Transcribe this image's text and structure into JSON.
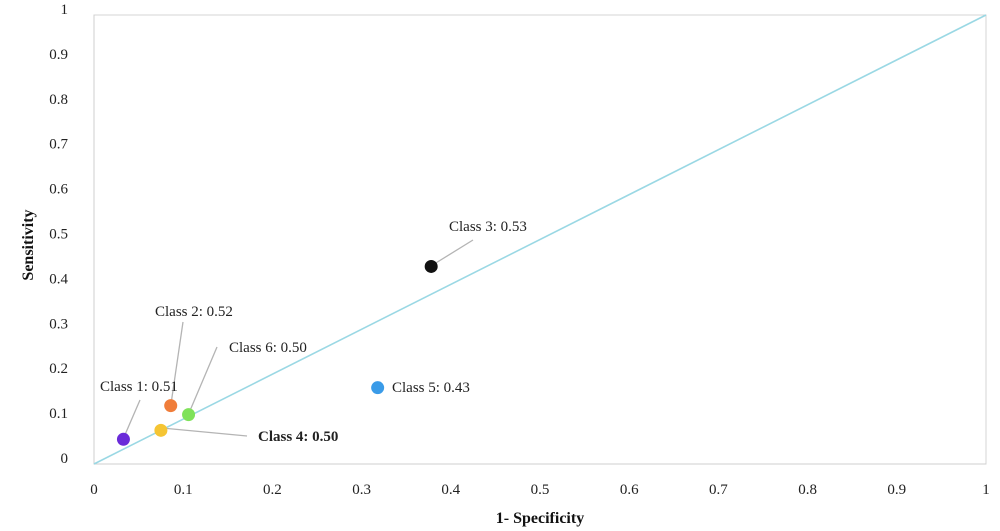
{
  "chart_data": {
    "type": "scatter",
    "xlabel": "1- Specificity",
    "ylabel": "Sensitivity",
    "xlim": [
      0,
      1
    ],
    "ylim": [
      0,
      1
    ],
    "x_ticks": [
      "0",
      "0.1",
      "0.2",
      "0.3",
      "0.4",
      "0.5",
      "0.6",
      "0.7",
      "0.8",
      "0.9",
      "1"
    ],
    "y_ticks": [
      "0",
      "0.1",
      "0.2",
      "0.3",
      "0.4",
      "0.5",
      "0.6",
      "0.7",
      "0.8",
      "0.9",
      "1"
    ],
    "grid": false,
    "reference_line": {
      "from": [
        0,
        0
      ],
      "to": [
        1,
        1
      ],
      "color": "#9ad8e4"
    },
    "points": [
      {
        "label": "Class 1: 0.51",
        "x": 0.033,
        "y": 0.055,
        "color": "#6a2bd9"
      },
      {
        "label": "Class 2: 0.52",
        "x": 0.086,
        "y": 0.13,
        "color": "#f07d3a"
      },
      {
        "label": "Class 3: 0.53",
        "x": 0.378,
        "y": 0.44,
        "color": "#111111"
      },
      {
        "label": "Class 4: 0.50",
        "x": 0.075,
        "y": 0.075,
        "color": "#f5c534",
        "bold": true
      },
      {
        "label": "Class 5: 0.43",
        "x": 0.318,
        "y": 0.17,
        "color": "#3a9be8"
      },
      {
        "label": "Class 6: 0.50",
        "x": 0.106,
        "y": 0.11,
        "color": "#7fe25a"
      }
    ]
  }
}
